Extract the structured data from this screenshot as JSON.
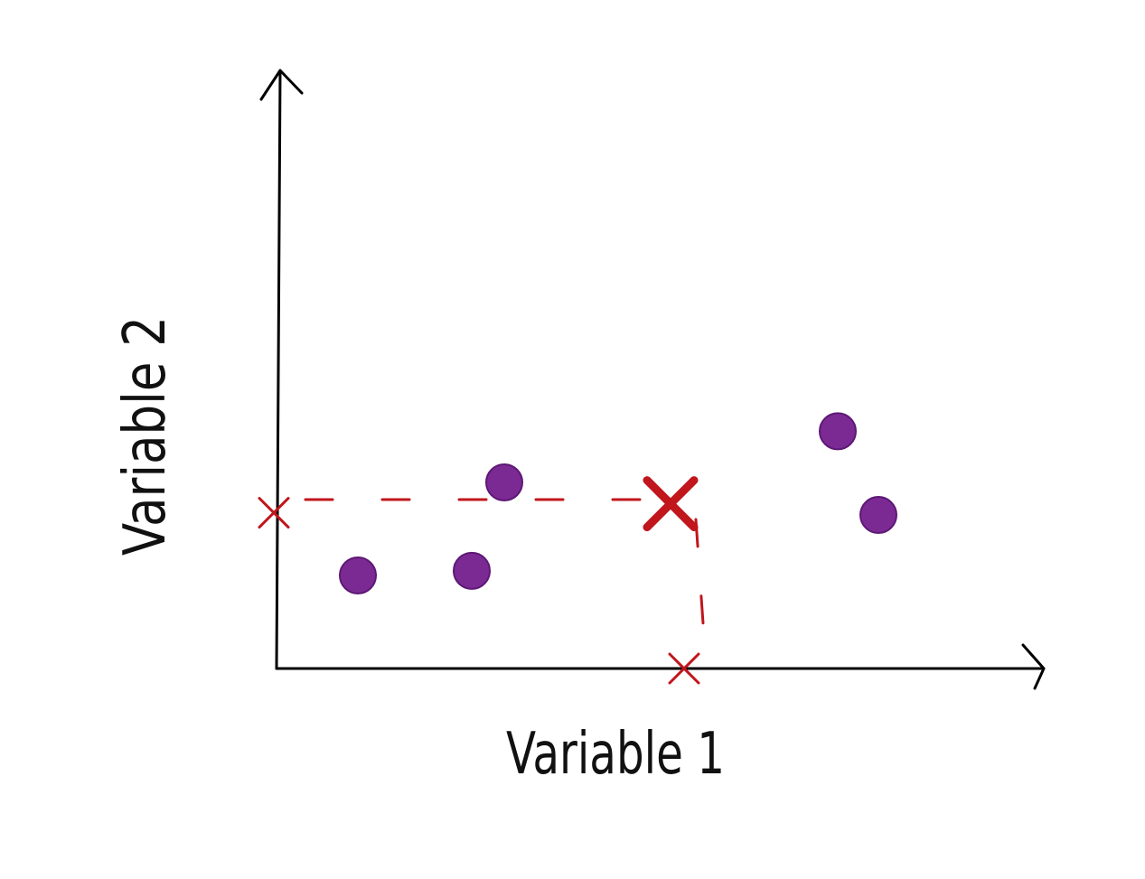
{
  "diagram": {
    "x_axis_label": "Variable 1",
    "y_axis_label": "Variable 2",
    "colors": {
      "axis": "#000000",
      "points": "#7b2a94",
      "points_outline": "#5e1874",
      "highlight": "#c0161c"
    },
    "axis_arrows": [
      "x-axis-arrowhead",
      "y-axis-arrowhead"
    ],
    "data_points": [
      {
        "x": 1.0,
        "y": 1.0
      },
      {
        "x": 2.4,
        "y": 1.05
      },
      {
        "x": 2.8,
        "y": 2.0
      },
      {
        "x": 6.9,
        "y": 2.55
      },
      {
        "x": 7.4,
        "y": 1.65
      }
    ],
    "highlight_point": {
      "x": 5.0,
      "y": 1.8
    }
  }
}
